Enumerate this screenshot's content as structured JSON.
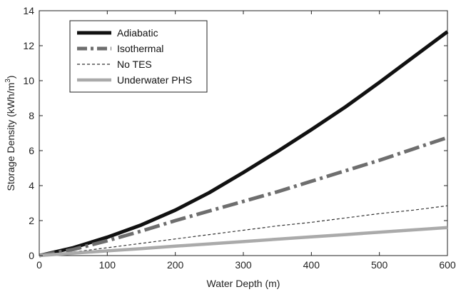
{
  "chart_data": {
    "type": "line",
    "title": "",
    "xlabel": "Water Depth (m)",
    "ylabel_main": "Storage Density (kWh/m",
    "ylabel_sup": "3",
    "ylabel_close": ")",
    "xlim": [
      0,
      600
    ],
    "ylim": [
      0,
      14
    ],
    "xticks": [
      0,
      100,
      200,
      300,
      400,
      500,
      600
    ],
    "yticks": [
      0,
      2,
      4,
      6,
      8,
      10,
      12,
      14
    ],
    "grid": false,
    "legend_position": "top-left",
    "x": [
      0,
      50,
      100,
      150,
      200,
      250,
      300,
      350,
      400,
      450,
      500,
      550,
      600
    ],
    "series": [
      {
        "name": "Adiabatic",
        "values": [
          0,
          0.45,
          1.05,
          1.75,
          2.6,
          3.6,
          4.75,
          5.95,
          7.2,
          8.5,
          9.9,
          11.35,
          12.8
        ],
        "color": "#111111",
        "dash": "solid"
      },
      {
        "name": "Isothermal",
        "values": [
          0,
          0.35,
          0.85,
          1.4,
          2.0,
          2.55,
          3.1,
          3.65,
          4.25,
          4.85,
          5.45,
          6.1,
          6.75
        ],
        "color": "#6e6e6e",
        "dash": "dashdot"
      },
      {
        "name": "No TES",
        "values": [
          0,
          0.2,
          0.45,
          0.7,
          0.95,
          1.2,
          1.45,
          1.7,
          1.9,
          2.15,
          2.4,
          2.6,
          2.85
        ],
        "color": "#333333",
        "dash": "dashed"
      },
      {
        "name": "Underwater PHS",
        "values": [
          0,
          0.14,
          0.27,
          0.4,
          0.54,
          0.67,
          0.8,
          0.94,
          1.07,
          1.2,
          1.34,
          1.47,
          1.6
        ],
        "color": "#aaaaaa",
        "dash": "solid"
      }
    ]
  }
}
